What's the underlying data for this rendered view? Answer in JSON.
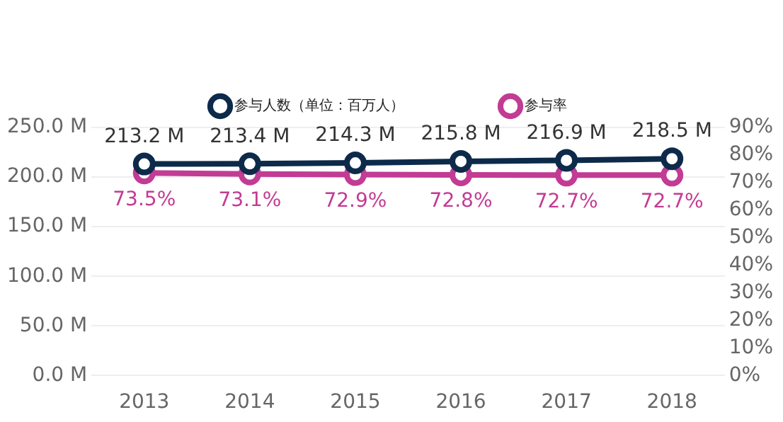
{
  "chart_data": {
    "type": "line",
    "categories": [
      "2013",
      "2014",
      "2015",
      "2016",
      "2017",
      "2018"
    ],
    "series": [
      {
        "name": "参与人数（单位：百万人）",
        "color": "#0d2a4a",
        "values": [
          213.2,
          213.4,
          214.3,
          215.8,
          216.9,
          218.5
        ],
        "value_labels": [
          "213.2 M",
          "213.4 M",
          "214.3 M",
          "215.8 M",
          "216.9 M",
          "218.5 M"
        ]
      },
      {
        "name": "参与率",
        "color": "#c23b94",
        "axis": "y2",
        "values": [
          73.5,
          73.1,
          72.9,
          72.8,
          72.7,
          72.7
        ],
        "value_labels": [
          "73.5%",
          "73.1%",
          "72.9%",
          "72.8%",
          "72.7%",
          "72.7%"
        ]
      }
    ],
    "ylim": [
      0,
      250
    ],
    "yticks": [
      {
        "value": 0,
        "label": "0.0 M"
      },
      {
        "value": 50,
        "label": "50.0 M"
      },
      {
        "value": 100,
        "label": "100.0 M"
      },
      {
        "value": 150,
        "label": "150.0 M"
      },
      {
        "value": 200,
        "label": "200.0 M"
      },
      {
        "value": 250,
        "label": "250.0 M"
      }
    ],
    "y2lim": [
      0,
      90
    ],
    "y2ticks": [
      {
        "value": 0,
        "label": "0%"
      },
      {
        "value": 10,
        "label": "10%"
      },
      {
        "value": 20,
        "label": "20%"
      },
      {
        "value": 30,
        "label": "30%"
      },
      {
        "value": 40,
        "label": "40%"
      },
      {
        "value": 50,
        "label": "50%"
      },
      {
        "value": 60,
        "label": "60%"
      },
      {
        "value": 70,
        "label": "70%"
      },
      {
        "value": 80,
        "label": "80%"
      },
      {
        "value": 90,
        "label": "90%"
      }
    ],
    "grid": "y",
    "legend": "top",
    "marker": "circle",
    "line_style": "solid"
  }
}
